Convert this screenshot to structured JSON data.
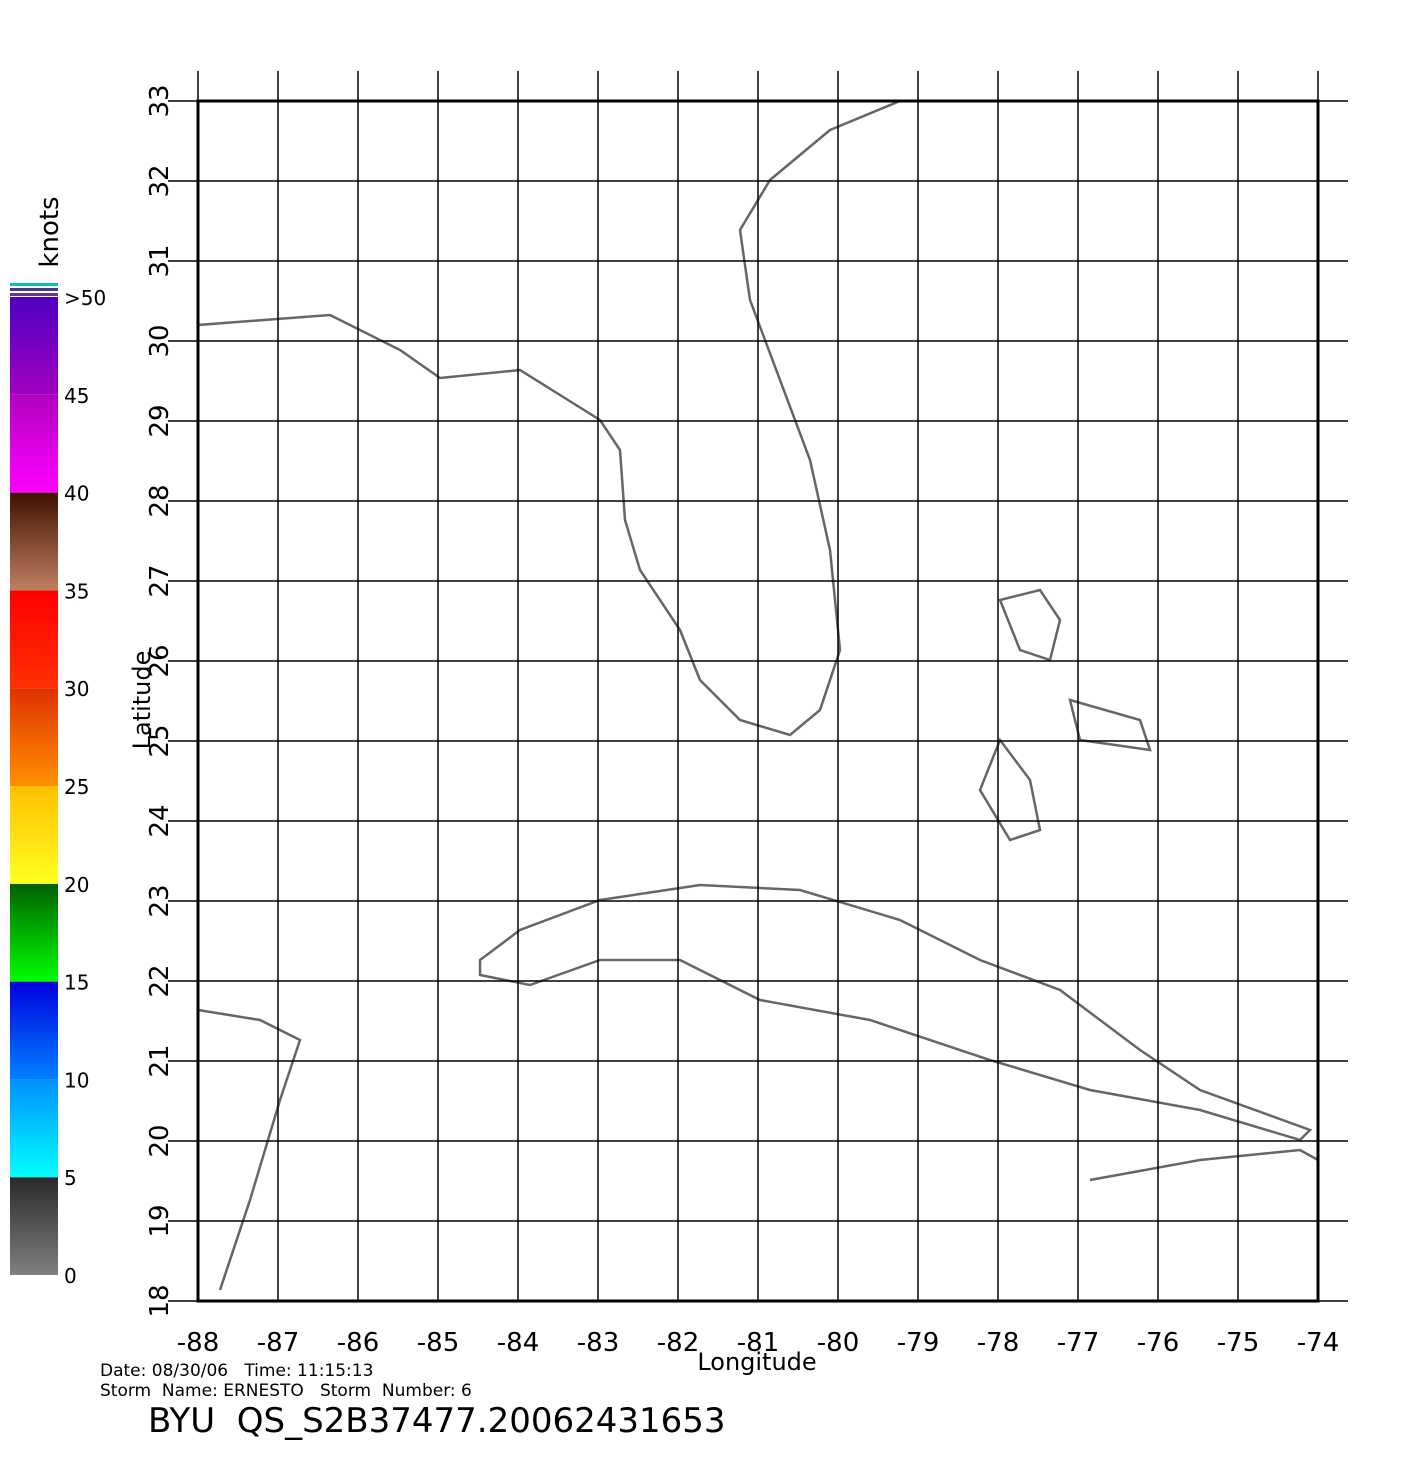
{
  "map": {
    "x_axis": {
      "label": "Longitude",
      "ticks": [
        -88,
        -87,
        -86,
        -85,
        -84,
        -83,
        -82,
        -81,
        -80,
        -79,
        -78,
        -77,
        -76,
        -75,
        -74
      ]
    },
    "y_axis": {
      "label": "Latitude",
      "ticks": [
        18,
        19,
        20,
        21,
        22,
        23,
        24,
        25,
        26,
        27,
        28,
        29,
        30,
        31,
        32,
        33
      ]
    },
    "colorbar": {
      "unit": "knots",
      "ticks": [
        0,
        5,
        10,
        15,
        20,
        25,
        30,
        35,
        40,
        45,
        {
          "value": 50,
          "label": ">50"
        }
      ],
      "colors": [
        [
          "#808080",
          "#2a2a2a"
        ],
        [
          "#00ffff",
          "#0090ff"
        ],
        [
          "#0080ff",
          "#0000e0"
        ],
        [
          "#00ff00",
          "#006000"
        ],
        [
          "#ffff20",
          "#ffc000"
        ],
        [
          "#ff9000",
          "#e03000"
        ],
        [
          "#ff3000",
          "#ff0000"
        ],
        [
          "#c08060",
          "#401000"
        ],
        [
          "#ff00ff",
          "#b000c0"
        ],
        [
          "#a000c0",
          "#5000c0"
        ]
      ]
    },
    "footer": {
      "line1": "Date: 08/30/06   Time: 11:15:13",
      "line2": "Storm  Name: ERNESTO   Storm  Number: 6",
      "title": "BYU  QS_S2B37477.20062431653"
    }
  }
}
